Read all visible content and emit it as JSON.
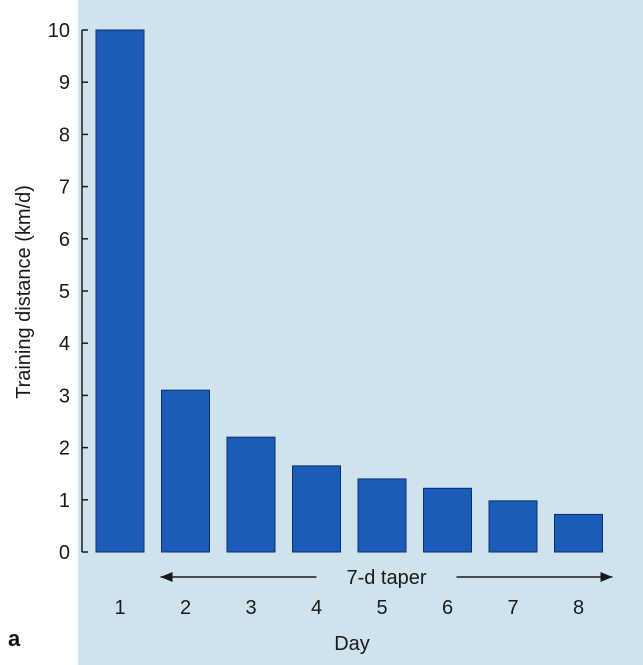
{
  "colors": {
    "plot_background": "#cfe3ec",
    "bar": "#1a5cb8",
    "bar_edge": "#0b2f6e",
    "text": "#1a1a1a"
  },
  "panel_label": "a",
  "chart_data": {
    "type": "bar",
    "categories": [
      "1",
      "2",
      "3",
      "4",
      "5",
      "6",
      "7",
      "8"
    ],
    "values": [
      10.0,
      3.1,
      2.2,
      1.65,
      1.4,
      1.22,
      0.98,
      0.72
    ],
    "title": "",
    "xlabel": "Day",
    "ylabel": "Training distance (km/d)",
    "ylim": [
      0,
      10
    ],
    "yticks": [
      0,
      1,
      2,
      3,
      4,
      5,
      6,
      7,
      8,
      9,
      10
    ],
    "grid": false,
    "annotations": [
      {
        "text": "7-d taper",
        "from_category": "2",
        "to_category": "8",
        "style": "double-arrow"
      }
    ]
  }
}
